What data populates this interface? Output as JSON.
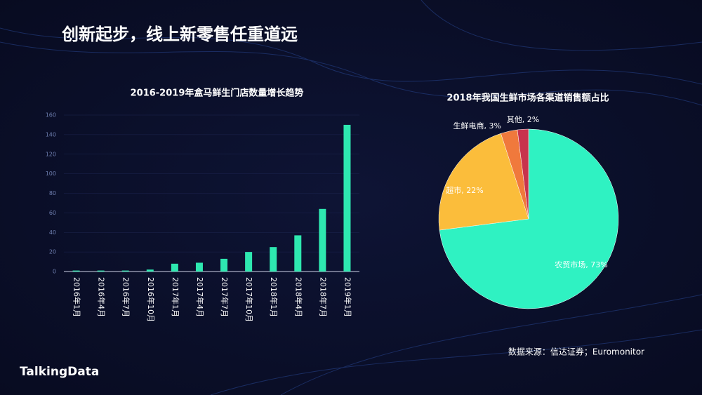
{
  "header": {
    "title": "创新起步，线上新零售任重道远"
  },
  "chart_data": [
    {
      "type": "bar",
      "title": "2016-2019年盒马鲜生门店数量增长趋势",
      "categories": [
        "2016年1月",
        "2016年4月",
        "2016年7月",
        "2016年10月",
        "2017年1月",
        "2017年4月",
        "2017年7月",
        "2017年10月",
        "2018年1月",
        "2018年4月",
        "2018年7月",
        "2019年1月"
      ],
      "values": [
        1,
        1,
        1,
        2,
        8,
        9,
        13,
        20,
        25,
        37,
        64,
        150
      ],
      "color": "#2ee8b0",
      "ylim": [
        0,
        160
      ],
      "yticks": [
        0,
        20,
        40,
        60,
        80,
        100,
        120,
        140,
        160
      ],
      "grid": true
    },
    {
      "type": "pie",
      "title": "2018年我国生鲜市场各渠道销售额占比",
      "values": [
        73,
        22,
        3,
        2
      ],
      "value_labels": [
        "农贸市场, 73%",
        "超市, 22%",
        "生鲜电商, 3%",
        "其他, 2%"
      ],
      "colors": [
        "#2ff2c2",
        "#fbbd3b",
        "#f0793c",
        "#c8334d"
      ]
    }
  ],
  "source": "数据来源：信达证券；Euromonitor",
  "logo": "TalkingData"
}
